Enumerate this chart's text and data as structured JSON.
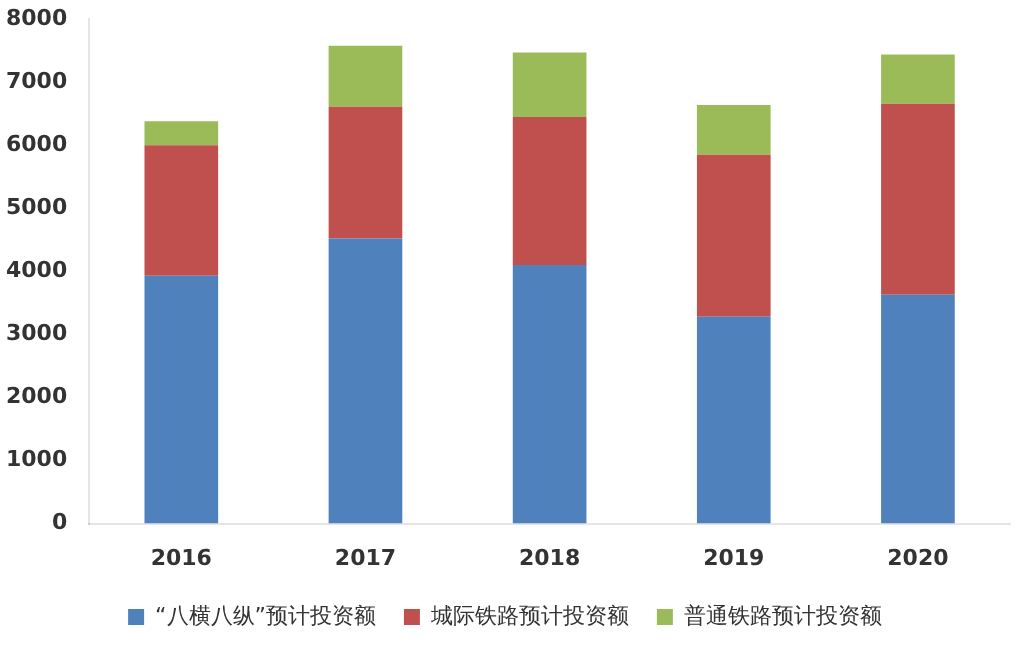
{
  "chart_data": {
    "type": "bar",
    "stacked": true,
    "categories": [
      "2016",
      "2017",
      "2018",
      "2019",
      "2020"
    ],
    "series": [
      {
        "name": "“八横八纵”预计投资额",
        "color": "#4f81bd",
        "values": [
          3930,
          4520,
          4100,
          3280,
          3630
        ]
      },
      {
        "name": "城际铁路预计投资额",
        "color": "#c0504d",
        "values": [
          2070,
          2090,
          2350,
          2570,
          3030
        ]
      },
      {
        "name": "普通铁路预计投资额",
        "color": "#9bbb59",
        "values": [
          380,
          970,
          1020,
          790,
          780
        ]
      }
    ],
    "ylim": [
      0,
      8000
    ],
    "yticks": [
      0,
      1000,
      2000,
      3000,
      4000,
      5000,
      6000,
      7000,
      8000
    ],
    "grid": false,
    "legend": "bottom"
  }
}
